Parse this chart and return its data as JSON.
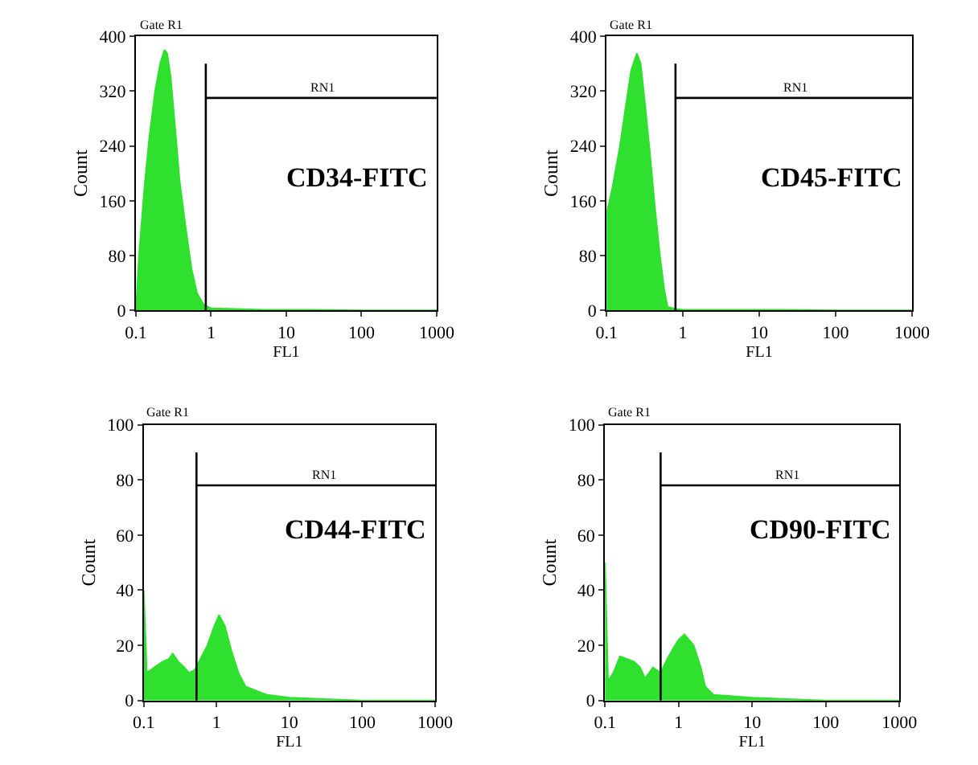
{
  "chart_data": [
    {
      "type": "area",
      "xlabel": "FL1",
      "ylabel": "Count",
      "log": "x",
      "xlim": [
        0.1,
        1000
      ],
      "ylim": [
        0,
        400
      ],
      "xticks": [
        0.1,
        1,
        10,
        100,
        1000
      ],
      "yticks": [
        0,
        80,
        160,
        240,
        320,
        400
      ],
      "series": [
        {
          "color": "#2fe02f",
          "x": [
            0.1,
            0.11,
            0.13,
            0.15,
            0.18,
            0.21,
            0.24,
            0.26,
            0.29,
            0.33,
            0.38,
            0.46,
            0.55,
            0.65,
            0.8,
            1,
            2,
            5,
            20,
            100,
            1000
          ],
          "values": [
            0,
            80,
            180,
            250,
            320,
            360,
            380,
            375,
            340,
            270,
            190,
            120,
            60,
            25,
            8,
            3,
            2,
            1,
            1,
            0,
            0
          ]
        },
        {
          "type": "line",
          "color": "#000000",
          "x": [
            0.85,
            0.85,
            0.85,
            1000
          ],
          "values": [
            0,
            360,
            310,
            310
          ]
        }
      ],
      "annotations": [
        "Gate R1",
        "RN1",
        "CD34-FITC"
      ]
    },
    {
      "type": "area",
      "xlabel": "FL1",
      "ylabel": "Count",
      "log": "x",
      "xlim": [
        0.1,
        1000
      ],
      "ylim": [
        0,
        400
      ],
      "xticks": [
        0.1,
        1,
        10,
        100,
        1000
      ],
      "yticks": [
        0,
        80,
        160,
        240,
        320,
        400
      ],
      "series": [
        {
          "color": "#2fe02f",
          "x": [
            0.1,
            0.12,
            0.15,
            0.18,
            0.21,
            0.25,
            0.28,
            0.32,
            0.37,
            0.43,
            0.5,
            0.57,
            0.63,
            0.8,
            1,
            2,
            5,
            20,
            100,
            1000
          ],
          "values": [
            140,
            180,
            240,
            300,
            350,
            375,
            360,
            300,
            230,
            150,
            80,
            30,
            5,
            2,
            1,
            1,
            1,
            1,
            0,
            0
          ]
        },
        {
          "type": "line",
          "color": "#000000",
          "x": [
            0.8,
            0.8,
            0.8,
            1000
          ],
          "values": [
            0,
            360,
            310,
            310
          ]
        }
      ],
      "annotations": [
        "Gate R1",
        "RN1",
        "CD45-FITC"
      ]
    },
    {
      "type": "area",
      "xlabel": "FL1",
      "ylabel": "Count",
      "log": "x",
      "xlim": [
        0.1,
        1000
      ],
      "ylim": [
        0,
        100
      ],
      "xticks": [
        0.1,
        1,
        10,
        100,
        1000
      ],
      "yticks": [
        0,
        20,
        40,
        60,
        80,
        100
      ],
      "series": [
        {
          "color": "#2fe02f",
          "x": [
            0.1,
            0.11,
            0.14,
            0.18,
            0.22,
            0.25,
            0.3,
            0.36,
            0.42,
            0.5,
            0.6,
            0.75,
            0.9,
            1.08,
            1.3,
            1.6,
            2,
            2.5,
            5,
            10,
            30,
            100,
            1000
          ],
          "values": [
            40,
            10,
            12,
            14,
            15,
            17,
            14,
            12,
            10,
            11,
            15,
            20,
            26,
            31,
            27,
            18,
            10,
            5,
            2,
            1,
            0.5,
            0,
            0
          ]
        },
        {
          "type": "line",
          "color": "#000000",
          "x": [
            0.53,
            0.53,
            0.53,
            1000
          ],
          "values": [
            0,
            90,
            78,
            78
          ]
        }
      ],
      "annotations": [
        "Gate R1",
        "RN1",
        "CD44-FITC"
      ]
    },
    {
      "type": "area",
      "xlabel": "FL1",
      "ylabel": "Count",
      "log": "x",
      "xlim": [
        0.1,
        1000
      ],
      "ylim": [
        0,
        100
      ],
      "xticks": [
        0.1,
        1,
        10,
        100,
        1000
      ],
      "yticks": [
        0,
        20,
        40,
        60,
        80,
        100
      ],
      "series": [
        {
          "color": "#2fe02f",
          "x": [
            0.1,
            0.11,
            0.13,
            0.16,
            0.2,
            0.25,
            0.3,
            0.35,
            0.45,
            0.57,
            0.7,
            0.85,
            1,
            1.2,
            1.6,
            2,
            2.3,
            3,
            10,
            30,
            100,
            1000
          ],
          "values": [
            50,
            7,
            10,
            16,
            15,
            14,
            12,
            8,
            12,
            10,
            15,
            19,
            22,
            24,
            20,
            12,
            5,
            2,
            1,
            0.5,
            0,
            0
          ]
        },
        {
          "type": "line",
          "color": "#000000",
          "x": [
            0.57,
            0.57,
            0.57,
            1000
          ],
          "values": [
            0,
            90,
            78,
            78
          ]
        }
      ],
      "annotations": [
        "Gate R1",
        "RN1",
        "CD90-FITC"
      ]
    }
  ]
}
